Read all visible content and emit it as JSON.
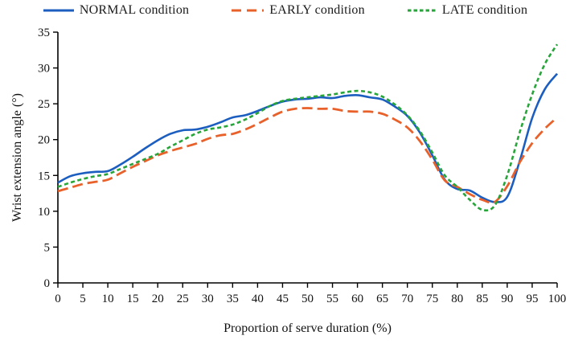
{
  "chart_data": {
    "type": "line",
    "title": "",
    "xlabel": "Proportion of serve duration (%)",
    "ylabel": "Wrist extension angle (°)",
    "xlim": [
      0,
      100
    ],
    "ylim": [
      0,
      35
    ],
    "xticks": [
      0,
      5,
      10,
      15,
      20,
      25,
      30,
      35,
      40,
      45,
      50,
      55,
      60,
      65,
      70,
      75,
      80,
      85,
      90,
      95,
      100
    ],
    "yticks": [
      0,
      5,
      10,
      15,
      20,
      25,
      30,
      35
    ],
    "grid": "off",
    "legend_position": "top",
    "x": [
      0,
      2.5,
      5,
      7.5,
      10,
      12.5,
      15,
      17.5,
      20,
      22.5,
      25,
      27.5,
      30,
      32.5,
      35,
      37.5,
      40,
      42.5,
      45,
      47.5,
      50,
      52.5,
      55,
      57.5,
      60,
      62.5,
      65,
      67.5,
      70,
      72.5,
      75,
      77.5,
      80,
      82.5,
      85,
      87.5,
      90,
      92.5,
      95,
      97.5,
      100
    ],
    "series": [
      {
        "name": "NORMAL condition",
        "color": "#1c5ec0",
        "style": "solid",
        "values": [
          14.0,
          14.9,
          15.3,
          15.5,
          15.6,
          16.5,
          17.6,
          18.8,
          19.9,
          20.8,
          21.3,
          21.4,
          21.8,
          22.4,
          23.1,
          23.4,
          24.0,
          24.7,
          25.3,
          25.6,
          25.7,
          25.9,
          25.8,
          26.1,
          26.2,
          25.9,
          25.6,
          24.6,
          23.3,
          21.0,
          17.8,
          14.4,
          13.1,
          12.9,
          11.9,
          11.3,
          12.0,
          17.0,
          23.0,
          27.0,
          29.2
        ]
      },
      {
        "name": "EARLY condition",
        "color": "#e8612b",
        "style": "long-dash",
        "values": [
          12.8,
          13.3,
          13.8,
          14.1,
          14.4,
          15.3,
          16.2,
          17.0,
          17.8,
          18.4,
          18.9,
          19.4,
          20.1,
          20.6,
          20.8,
          21.4,
          22.2,
          23.1,
          23.9,
          24.3,
          24.4,
          24.3,
          24.3,
          24.0,
          23.9,
          23.9,
          23.6,
          22.8,
          21.7,
          19.8,
          17.2,
          14.3,
          13.4,
          12.4,
          11.6,
          11.3,
          13.5,
          16.8,
          19.5,
          21.5,
          23.1
        ]
      },
      {
        "name": "LATE condition",
        "color": "#27a53a",
        "style": "short-dash",
        "values": [
          13.4,
          14.0,
          14.5,
          14.9,
          15.2,
          15.9,
          16.6,
          17.3,
          18.0,
          19.0,
          19.9,
          20.8,
          21.4,
          21.7,
          22.1,
          22.8,
          23.7,
          24.7,
          25.4,
          25.7,
          25.9,
          26.1,
          26.3,
          26.6,
          26.8,
          26.6,
          26.0,
          24.9,
          23.4,
          21.2,
          18.2,
          15.0,
          13.4,
          11.6,
          10.2,
          10.8,
          15.0,
          21.0,
          26.3,
          30.5,
          33.3
        ]
      }
    ]
  }
}
